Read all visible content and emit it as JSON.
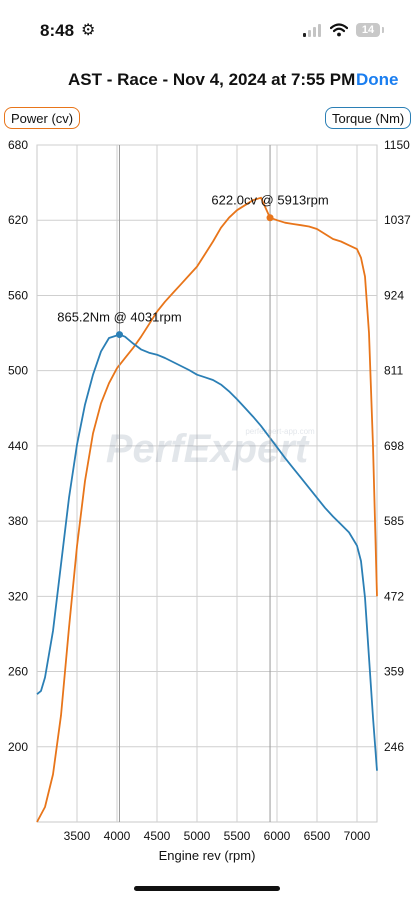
{
  "status_bar": {
    "time": "8:48",
    "battery": "14"
  },
  "header": {
    "title": "AST - Race - Nov 4, 2024 at 7:55 PM",
    "done_label": "Done"
  },
  "chart_data": {
    "type": "line",
    "xlabel": "Engine rev (rpm)",
    "xlim": [
      3000,
      7250
    ],
    "xticks": [
      3500,
      4000,
      4500,
      5000,
      5500,
      6000,
      6500,
      7000
    ],
    "y_left": {
      "label": "Power (cv)",
      "lim": [
        140,
        680
      ],
      "ticks": [
        680,
        620,
        560,
        500,
        440,
        380,
        320,
        260,
        200
      ]
    },
    "y_right": {
      "label": "Torque (Nm)",
      "lim": [
        133,
        1150
      ],
      "ticks": [
        1150,
        1037,
        924,
        811,
        698,
        585,
        472,
        359,
        246
      ]
    },
    "grid": true,
    "watermark": {
      "brand": "PerfExpert",
      "url": "perfexpert-app.com"
    },
    "series": [
      {
        "name": "Power (cv)",
        "axis": "left",
        "color": "#e8751a",
        "x": [
          3000,
          3100,
          3200,
          3300,
          3400,
          3500,
          3600,
          3700,
          3800,
          3900,
          4000,
          4100,
          4200,
          4300,
          4400,
          4500,
          4600,
          4700,
          4800,
          4900,
          5000,
          5100,
          5200,
          5300,
          5400,
          5500,
          5600,
          5700,
          5800,
          5913,
          6000,
          6100,
          6200,
          6300,
          6400,
          6500,
          6600,
          6700,
          6800,
          6900,
          7000,
          7050,
          7100,
          7150,
          7200,
          7250
        ],
        "y": [
          140,
          152,
          178,
          225,
          295,
          360,
          412,
          450,
          474,
          490,
          502,
          510,
          518,
          527,
          537,
          547,
          555,
          562,
          569,
          576,
          583,
          593,
          603,
          614,
          622,
          628,
          632,
          636,
          638,
          622,
          620,
          618,
          617,
          616,
          615,
          613,
          609,
          605,
          603,
          600,
          597,
          590,
          575,
          530,
          440,
          320
        ]
      },
      {
        "name": "Torque (Nm)",
        "axis": "right",
        "color": "#2b7fb5",
        "x": [
          3000,
          3050,
          3100,
          3200,
          3300,
          3400,
          3500,
          3600,
          3700,
          3800,
          3900,
          4031,
          4100,
          4200,
          4300,
          4400,
          4500,
          4600,
          4700,
          4800,
          4900,
          5000,
          5100,
          5200,
          5300,
          5400,
          5500,
          5600,
          5700,
          5800,
          5900,
          6000,
          6100,
          6200,
          6300,
          6400,
          6500,
          6600,
          6700,
          6800,
          6900,
          7000,
          7050,
          7100,
          7150,
          7200,
          7250
        ],
        "y": [
          325,
          330,
          350,
          420,
          520,
          620,
          700,
          760,
          805,
          840,
          860,
          865.2,
          862,
          852,
          843,
          838,
          835,
          830,
          824,
          818,
          812,
          805,
          801,
          797,
          790,
          780,
          768,
          755,
          742,
          728,
          712,
          696,
          680,
          665,
          650,
          635,
          620,
          605,
          592,
          580,
          568,
          548,
          525,
          470,
          380,
          290,
          210
        ]
      }
    ],
    "annotations": [
      {
        "series": "Power (cv)",
        "x": 5913,
        "y": 622.0,
        "label": "622.0cv @ 5913rpm"
      },
      {
        "series": "Torque (Nm)",
        "x": 4031,
        "y": 865.2,
        "label": "865.2Nm @ 4031rpm"
      }
    ]
  }
}
